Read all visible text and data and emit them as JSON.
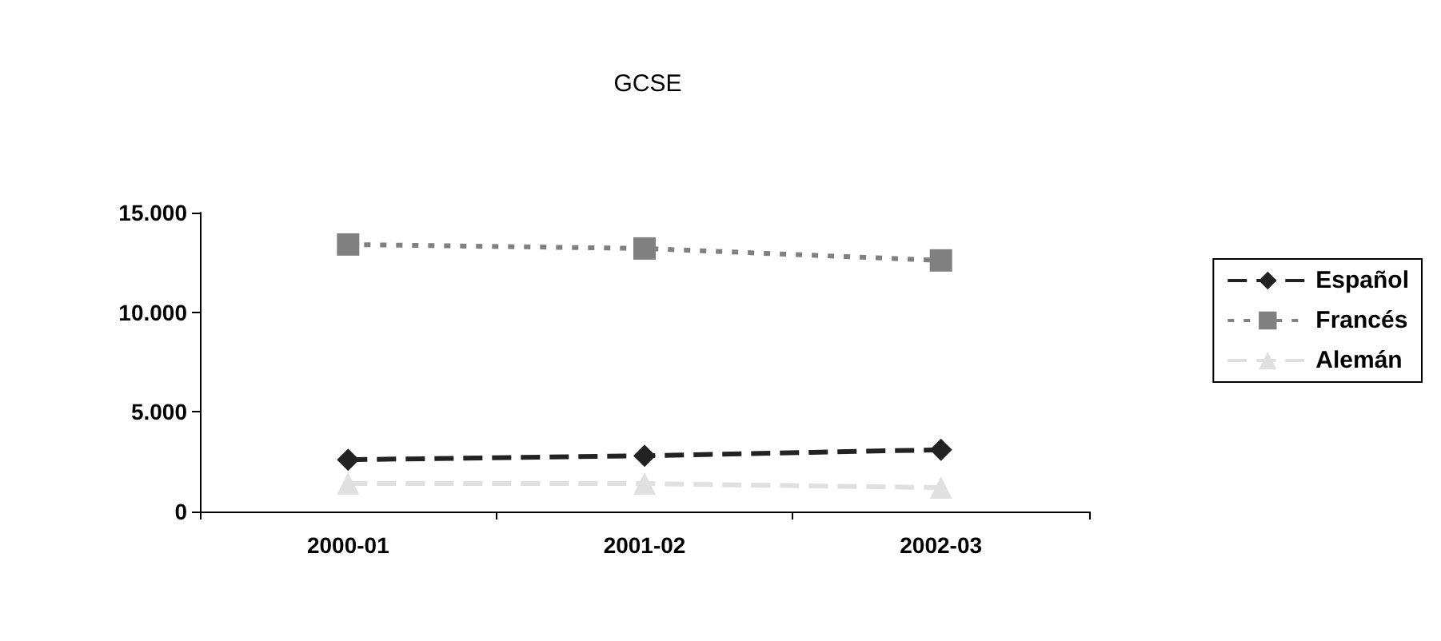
{
  "chart_data": {
    "type": "line",
    "title": "GCSE",
    "categories": [
      "2000-01",
      "2001-02",
      "2002-03"
    ],
    "series": [
      {
        "name": "Español",
        "color": "#222222",
        "values": [
          2600,
          2800,
          3100
        ],
        "marker": "diamond",
        "line_style": "dashed"
      },
      {
        "name": "Francés",
        "color": "#808080",
        "values": [
          13400,
          13200,
          12600
        ],
        "marker": "square",
        "line_style": "dotted"
      },
      {
        "name": "Alemán",
        "color": "#e0e0e0",
        "values": [
          1400,
          1400,
          1200
        ],
        "marker": "triangle",
        "line_style": "dashed"
      }
    ],
    "ylim": [
      0,
      15000
    ],
    "yticks": [
      {
        "value": 0,
        "label": "0"
      },
      {
        "value": 5000,
        "label": "5.000"
      },
      {
        "value": 10000,
        "label": "10.000"
      },
      {
        "value": 15000,
        "label": "15.000"
      }
    ],
    "grid": false,
    "legend": "right"
  }
}
